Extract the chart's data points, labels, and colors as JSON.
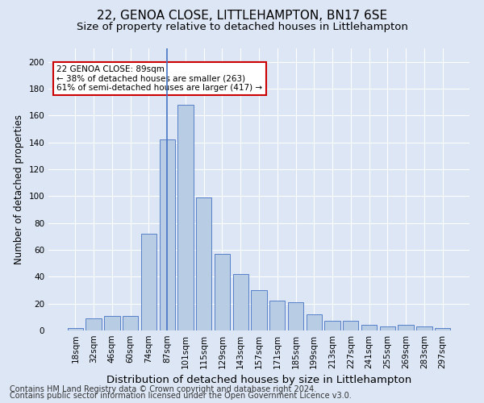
{
  "title1": "22, GENOA CLOSE, LITTLEHAMPTON, BN17 6SE",
  "title2": "Size of property relative to detached houses in Littlehampton",
  "xlabel": "Distribution of detached houses by size in Littlehampton",
  "ylabel": "Number of detached properties",
  "footer1": "Contains HM Land Registry data © Crown copyright and database right 2024.",
  "footer2": "Contains public sector information licensed under the Open Government Licence v3.0.",
  "categories": [
    "18sqm",
    "32sqm",
    "46sqm",
    "60sqm",
    "74sqm",
    "87sqm",
    "101sqm",
    "115sqm",
    "129sqm",
    "143sqm",
    "157sqm",
    "171sqm",
    "185sqm",
    "199sqm",
    "213sqm",
    "227sqm",
    "241sqm",
    "255sqm",
    "269sqm",
    "283sqm",
    "297sqm"
  ],
  "values": [
    2,
    9,
    11,
    11,
    72,
    142,
    168,
    99,
    57,
    42,
    30,
    22,
    21,
    12,
    7,
    7,
    4,
    3,
    4,
    3,
    2
  ],
  "bar_color": "#b8cce4",
  "bar_edge_color": "#4472c4",
  "highlight_index": 5,
  "highlight_line_color": "#4472c4",
  "annotation_box_text": "22 GENOA CLOSE: 89sqm\n← 38% of detached houses are smaller (263)\n61% of semi-detached houses are larger (417) →",
  "annotation_box_color": "#ffffff",
  "annotation_box_edge_color": "#cc0000",
  "ylim": [
    0,
    210
  ],
  "yticks": [
    0,
    20,
    40,
    60,
    80,
    100,
    120,
    140,
    160,
    180,
    200
  ],
  "background_color": "#dce6f5",
  "grid_color": "#ffffff",
  "title1_fontsize": 11,
  "title2_fontsize": 9.5,
  "xlabel_fontsize": 9.5,
  "ylabel_fontsize": 8.5,
  "tick_fontsize": 7.5,
  "footer_fontsize": 7.0,
  "ann_fontsize": 7.5
}
